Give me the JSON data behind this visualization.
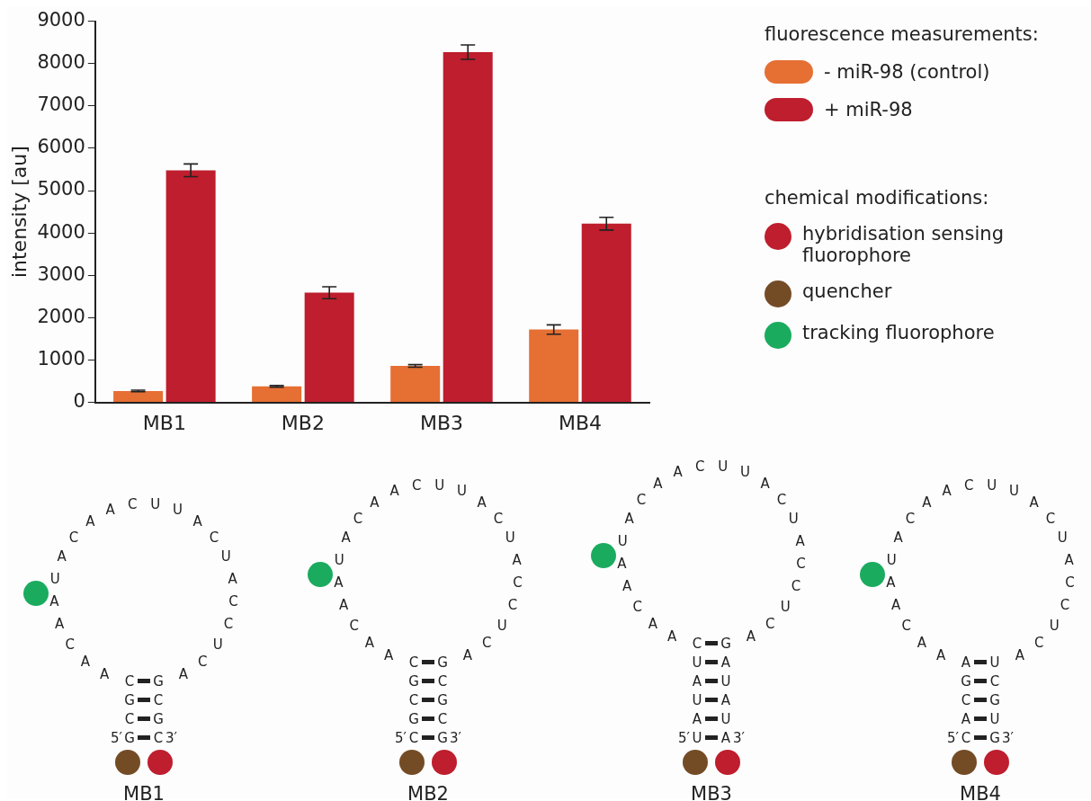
{
  "chart_data": [
    {
      "type": "bar",
      "ylabel": "intensity [au]",
      "categories": [
        "MB1",
        "MB2",
        "MB3",
        "MB4"
      ],
      "ylim": [
        0,
        9000
      ],
      "yticks": [
        0,
        1000,
        2000,
        3000,
        4000,
        5000,
        6000,
        7000,
        8000,
        9000
      ],
      "legend": "right",
      "legend_title": "fluorescence measurements:",
      "series": [
        {
          "name": "- miR-98 (control)",
          "color": "#e66f33",
          "values": [
            270,
            380,
            860,
            1720
          ],
          "errors": [
            20,
            20,
            30,
            110
          ]
        },
        {
          "name": "+ miR-98",
          "color": "#be1e2d",
          "values": [
            5480,
            2590,
            8270,
            4220
          ],
          "errors": [
            150,
            140,
            170,
            150
          ]
        }
      ]
    },
    {
      "type": "other",
      "colors": [
        "#be1e2d",
        "#734c26",
        "#1aab5f"
      ],
      "annotations": [
        "chemical modifications:",
        "hybridisation sensing fluorophore",
        "quencher",
        "tracking fluorophore",
        "5′",
        "GCGC",
        "A A C A A U A C A A C U U A C U A C C U C A",
        "GCGC",
        "3′",
        "MB1",
        "5′",
        "CGCGC",
        "A A C A A U A C A A C U U A C U A C C U C A",
        "GCGCG",
        "3′",
        "MB2",
        "5′",
        "UAUAUC",
        "A A C A A U A C A A C U U A C U A C C U C A",
        "GAUAUA",
        "3′",
        "MB3",
        "5′",
        "CACGA",
        "A A C A A U A C A A C U U A C U A C C U C A",
        "UCGUG",
        "3′",
        "MB4"
      ]
    }
  ]
}
